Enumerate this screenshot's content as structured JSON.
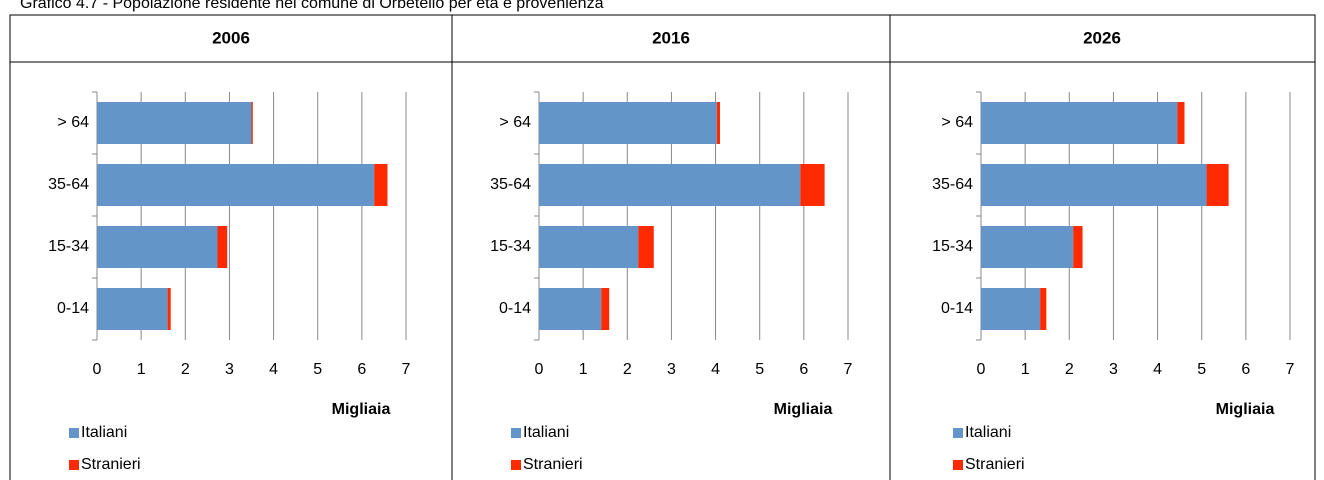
{
  "caption": "Grafico 4.7 - Popolazione residente nel comune di Orbetello per età e provenienza",
  "chart_data": [
    {
      "type": "bar",
      "orientation": "horizontal",
      "stacked": true,
      "title": "2006",
      "categories": [
        "> 64",
        "35-64",
        "15-34",
        "0-14"
      ],
      "series": [
        {
          "name": "Italiani",
          "color": "#6495c9",
          "values": [
            3.5,
            6.28,
            2.73,
            1.6
          ]
        },
        {
          "name": "Stranieri",
          "color": "#ff2a00",
          "values": [
            0.03,
            0.3,
            0.22,
            0.07
          ]
        }
      ],
      "xlim": [
        0,
        7
      ],
      "xticks": [
        0,
        1,
        2,
        3,
        4,
        5,
        6,
        7
      ],
      "x_label": "Migliaia",
      "grid": true
    },
    {
      "type": "bar",
      "orientation": "horizontal",
      "stacked": true,
      "title": "2016",
      "categories": [
        "> 64",
        "35-64",
        "15-34",
        "0-14"
      ],
      "series": [
        {
          "name": "Italiani",
          "color": "#6495c9",
          "values": [
            4.03,
            5.92,
            2.25,
            1.41
          ]
        },
        {
          "name": "Stranieri",
          "color": "#ff2a00",
          "values": [
            0.07,
            0.55,
            0.35,
            0.18
          ]
        }
      ],
      "xlim": [
        0,
        7
      ],
      "xticks": [
        0,
        1,
        2,
        3,
        4,
        5,
        6,
        7
      ],
      "x_label": "Migliaia",
      "grid": true
    },
    {
      "type": "bar",
      "orientation": "horizontal",
      "stacked": true,
      "title": "2026",
      "categories": [
        "> 64",
        "35-64",
        "15-34",
        "0-14"
      ],
      "series": [
        {
          "name": "Italiani",
          "color": "#6495c9",
          "values": [
            4.45,
            5.11,
            2.09,
            1.34
          ]
        },
        {
          "name": "Stranieri",
          "color": "#ff2a00",
          "values": [
            0.16,
            0.5,
            0.21,
            0.14
          ]
        }
      ],
      "xlim": [
        0,
        7
      ],
      "xticks": [
        0,
        1,
        2,
        3,
        4,
        5,
        6,
        7
      ],
      "x_label": "Migliaia",
      "grid": true
    }
  ]
}
